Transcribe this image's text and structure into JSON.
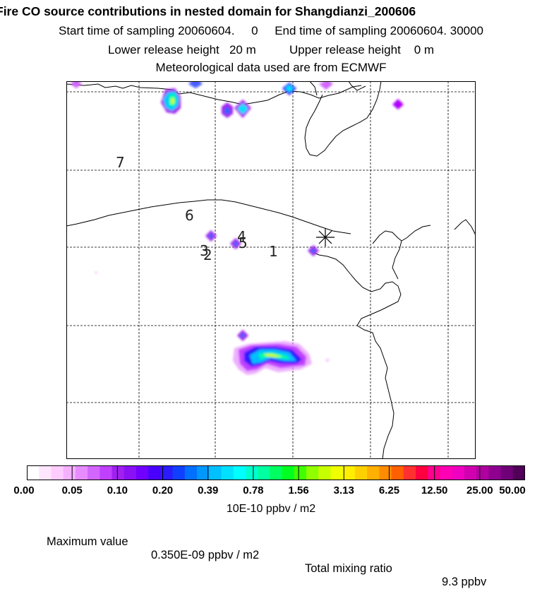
{
  "header": {
    "title": "Fire CO source contributions in nested domain for Shangdianzi_200606",
    "start_label": "Start time of sampling 20060604.",
    "start_time": "0",
    "end_label": "End time of sampling 20060604. 30000",
    "lower_label": "Lower release height",
    "lower_value": "20 m",
    "upper_label": "Upper release height",
    "upper_value": "0 m",
    "met_line": "Meteorological data used are from ECMWF"
  },
  "map": {
    "receptor_marker": "asterisk-icon",
    "labels": [
      "7",
      "6",
      "4",
      "5",
      "3",
      "2",
      "1"
    ]
  },
  "legend": {
    "ticks": [
      "0.00",
      "0.05",
      "0.10",
      "0.20",
      "0.39",
      "0.78",
      "1.56",
      "3.13",
      "6.25",
      "12.50",
      "25.00",
      "50.00"
    ],
    "colors": [
      "#ffffff",
      "#ffe6ff",
      "#ffccff",
      "#f5b0ff",
      "#e68cff",
      "#d266ff",
      "#bf40ff",
      "#a020f0",
      "#8a10f5",
      "#7000ff",
      "#4a00ff",
      "#2a1cff",
      "#1040ff",
      "#0070ff",
      "#0098ff",
      "#00c0ff",
      "#00e0ff",
      "#00ffff",
      "#00ffd0",
      "#00ffa0",
      "#00ff60",
      "#00ff20",
      "#40ff00",
      "#90ff00",
      "#c8ff00",
      "#f0ff00",
      "#ffee00",
      "#ffd000",
      "#ffb000",
      "#ff8c00",
      "#ff6000",
      "#ff3030",
      "#ff0040",
      "#ff0090",
      "#ff00b4",
      "#f000c0",
      "#d000b0",
      "#b000a0",
      "#900090",
      "#700078",
      "#500058"
    ],
    "units": "10E-10 ppbv / m2"
  },
  "footer": {
    "max_label": "Maximum value",
    "max_value": "0.350E-09 ppbv / m2",
    "total_label": "Total mixing ratio",
    "total_value": "9.3 ppbv"
  }
}
